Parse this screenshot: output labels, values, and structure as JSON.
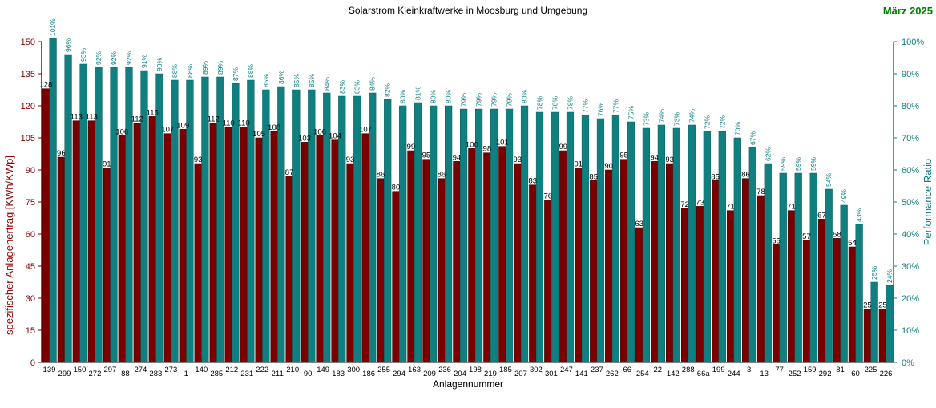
{
  "chart_data": {
    "type": "bar",
    "title": "Solarstrom Kleinkraftwerke in Moosburg und Umgebung",
    "subtitle": "März 2025",
    "xlabel": "Anlagennummer",
    "ylabel_left": "spezifischer Anlagenertrag  [KWh/KWp]",
    "ylabel_right": "Performance Ratio",
    "ylim_left": [
      0,
      150
    ],
    "ylim_right": [
      0,
      100
    ],
    "yticks_left": [
      "0",
      "15",
      "30",
      "45",
      "60",
      "75",
      "90",
      "105",
      "120",
      "135",
      "150"
    ],
    "yticks_right": [
      "0%",
      "10%",
      "20%",
      "30%",
      "40%",
      "50%",
      "60%",
      "70%",
      "80%",
      "90%",
      "100%"
    ],
    "colors": {
      "yield": "#7a0000",
      "ratio": "#0f7f7f",
      "title_accent": "#008000",
      "left_axis": "#8b0000",
      "right_axis": "#0f7f7f"
    },
    "categories": [
      "139",
      "299",
      "150",
      "272",
      "297",
      "88",
      "274",
      "283",
      "273",
      "1",
      "140",
      "285",
      "212",
      "231",
      "222",
      "211",
      "210",
      "90",
      "149",
      "183",
      "300",
      "186",
      "255",
      "294",
      "163",
      "209",
      "236",
      "204",
      "198",
      "219",
      "185",
      "207",
      "302",
      "301",
      "247",
      "141",
      "237",
      "262",
      "66",
      "254",
      "22",
      "142",
      "288",
      "66a",
      "199",
      "244",
      "3",
      "13",
      "77",
      "252",
      "159",
      "292",
      "81",
      "60",
      "225",
      "226"
    ],
    "series": [
      {
        "name": "spezifischer Anlagenertrag",
        "axis": "left",
        "values": [
          128,
          96,
          113,
          113,
          91,
          106,
          112,
          115,
          107,
          109,
          93,
          112,
          110,
          110,
          105,
          108,
          87,
          103,
          106,
          104,
          93,
          107,
          86,
          80,
          99,
          95,
          86,
          94,
          100,
          98,
          101,
          93,
          83,
          76,
          99,
          91,
          85,
          90,
          95,
          63,
          94,
          93,
          72,
          73,
          85,
          71,
          86,
          78,
          55,
          71,
          57,
          67,
          58,
          54,
          25,
          25
        ],
        "labels": [
          "128",
          "96",
          "113",
          "113",
          "91",
          "106",
          "112",
          "115",
          "107",
          "109",
          "93",
          "112",
          "110",
          "110",
          "105",
          "108",
          "87",
          "103",
          "106",
          "104",
          "93",
          "107",
          "86",
          "80",
          "99",
          "95",
          "86",
          "94",
          "100",
          "98",
          "101",
          "93",
          "83",
          "76",
          "99",
          "91",
          "85",
          "90",
          "95",
          "63",
          "94",
          "93",
          "72",
          "73",
          "85",
          "71",
          "86",
          "78",
          "55",
          "71",
          "57",
          "67",
          "58",
          "54",
          "25",
          "25"
        ]
      },
      {
        "name": "Performance Ratio",
        "axis": "right",
        "values": [
          101,
          96,
          93,
          92,
          92,
          92,
          91,
          90,
          88,
          88,
          89,
          89,
          87,
          88,
          85,
          86,
          85,
          85,
          84,
          83,
          83,
          84,
          82,
          80,
          81,
          80,
          80,
          79,
          79,
          79,
          79,
          80,
          78,
          78,
          78,
          77,
          76,
          77,
          75,
          73,
          74,
          73,
          74,
          72,
          72,
          70,
          67,
          62,
          59,
          59,
          59,
          54,
          49,
          43,
          25,
          24
        ],
        "labels": [
          "101%",
          "96%",
          "93%",
          "92%",
          "92%",
          "92%",
          "91%",
          "90%",
          "88%",
          "88%",
          "89%",
          "89%",
          "87%",
          "88%",
          "85%",
          "86%",
          "85%",
          "85%",
          "84%",
          "83%",
          "83%",
          "84%",
          "82%",
          "80%",
          "81%",
          "80%",
          "80%",
          "79%",
          "79%",
          "79%",
          "79%",
          "80%",
          "78%",
          "78%",
          "78%",
          "77%",
          "76%",
          "77%",
          "75%",
          "73%",
          "74%",
          "73%",
          "74%",
          "72%",
          "72%",
          "70%",
          "67%",
          "62%",
          "59%",
          "59%",
          "59%",
          "54%",
          "49%",
          "43%",
          "25%",
          "24%"
        ]
      }
    ]
  }
}
